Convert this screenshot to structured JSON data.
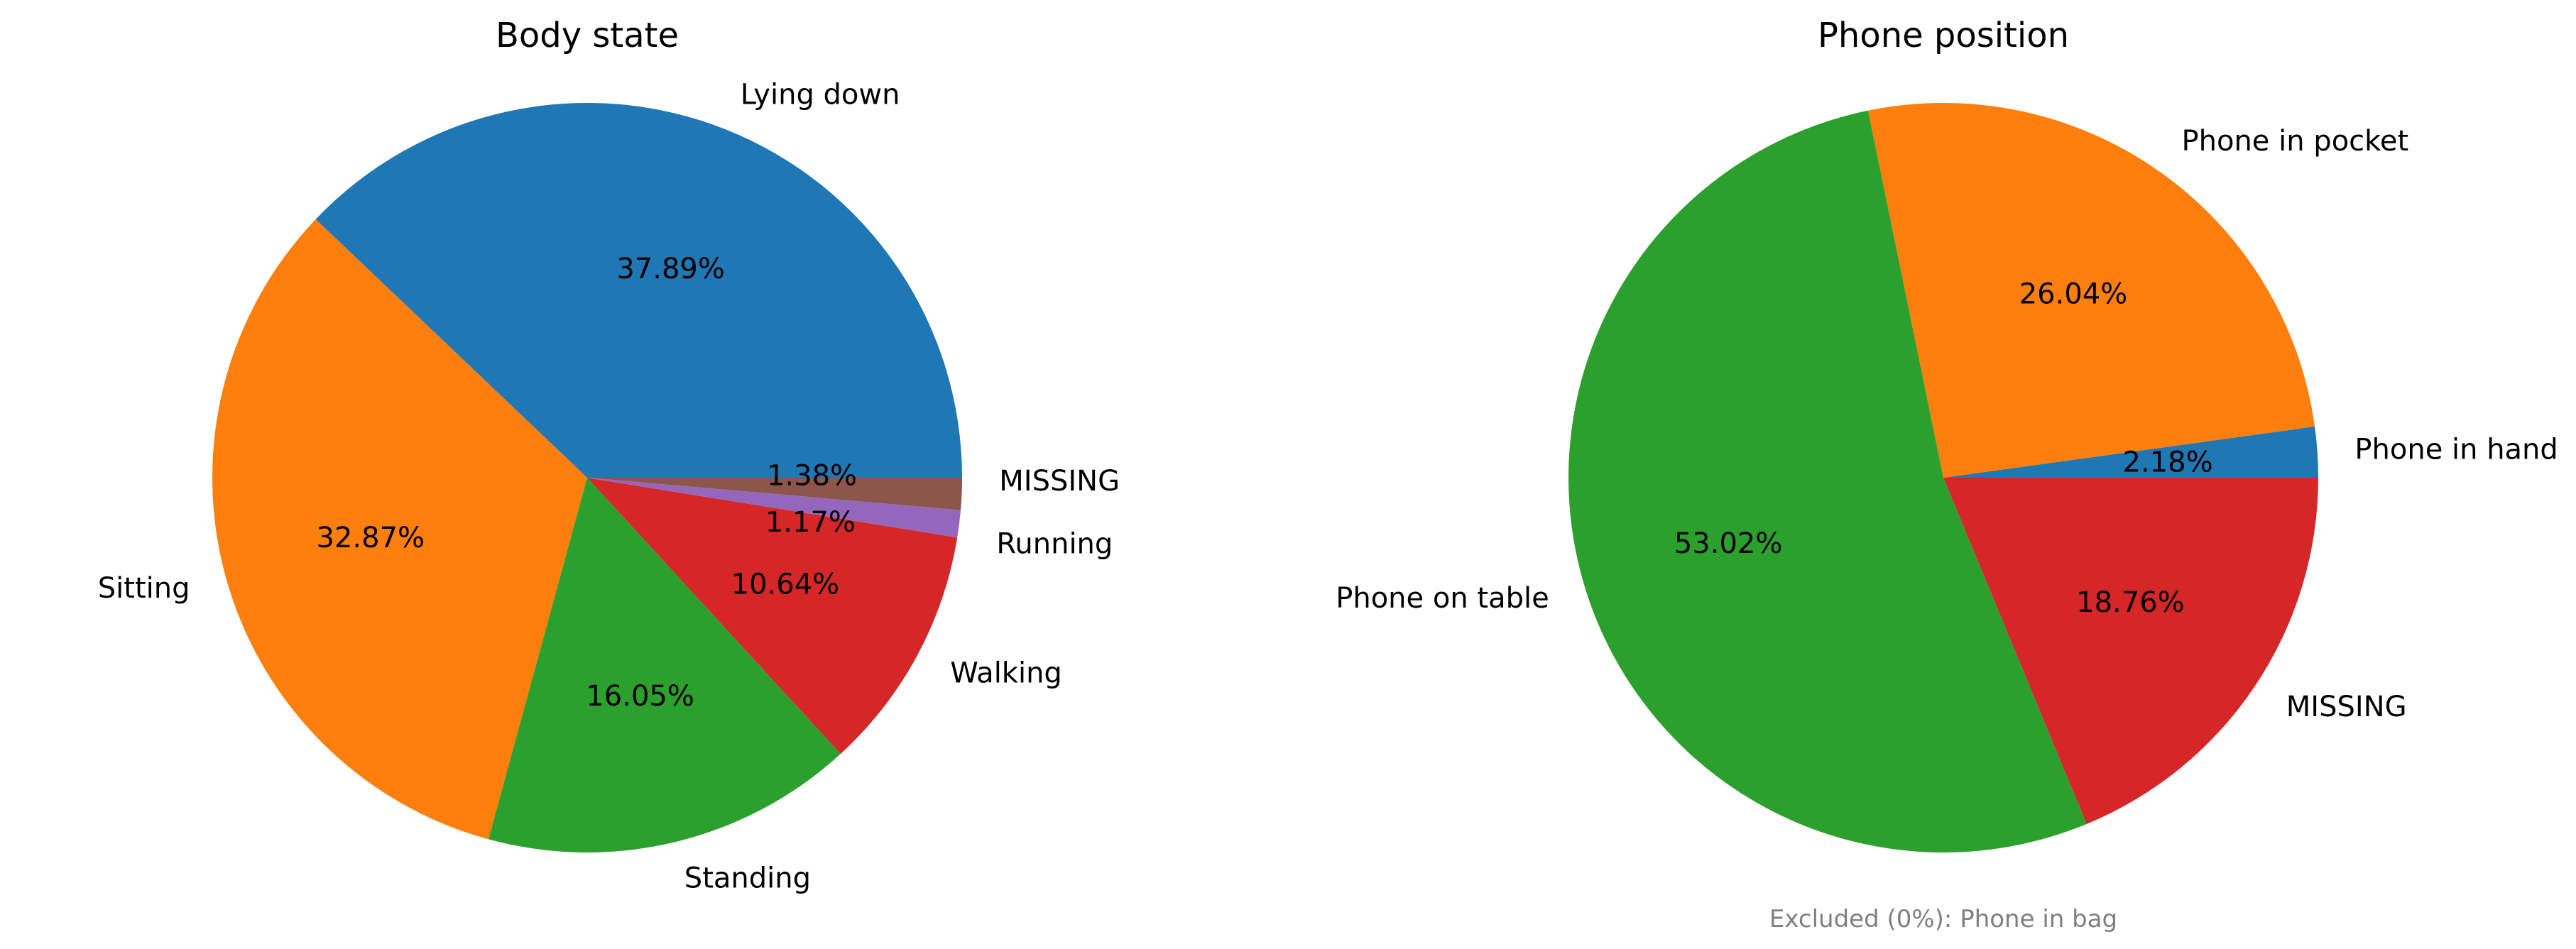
{
  "chart_data": [
    {
      "type": "pie",
      "title": "Body state",
      "slices": [
        {
          "label": "Lying down",
          "value": 37.89,
          "pct_label": "37.89%",
          "color": "#1f77b4"
        },
        {
          "label": "Sitting",
          "value": 32.87,
          "pct_label": "32.87%",
          "color": "#ff7f0e"
        },
        {
          "label": "Standing",
          "value": 16.05,
          "pct_label": "16.05%",
          "color": "#2ca02c"
        },
        {
          "label": "Walking",
          "value": 10.64,
          "pct_label": "10.64%",
          "color": "#d62728"
        },
        {
          "label": "Running",
          "value": 1.17,
          "pct_label": "1.17%",
          "color": "#9467bd"
        },
        {
          "label": "MISSING",
          "value": 1.38,
          "pct_label": "1.38%",
          "color": "#8c564b"
        }
      ],
      "start_angle_deg": 0,
      "direction": "counterclockwise"
    },
    {
      "type": "pie",
      "title": "Phone position",
      "slices": [
        {
          "label": "Phone in hand",
          "value": 2.18,
          "pct_label": "2.18%",
          "color": "#1f77b4"
        },
        {
          "label": "Phone in pocket",
          "value": 26.04,
          "pct_label": "26.04%",
          "color": "#ff7f0e"
        },
        {
          "label": "Phone on table",
          "value": 53.02,
          "pct_label": "53.02%",
          "color": "#2ca02c"
        },
        {
          "label": "MISSING",
          "value": 18.76,
          "pct_label": "18.76%",
          "color": "#d62728"
        }
      ],
      "start_angle_deg": 0,
      "direction": "counterclockwise",
      "footnote": "Excluded (0%): Phone in bag"
    }
  ]
}
